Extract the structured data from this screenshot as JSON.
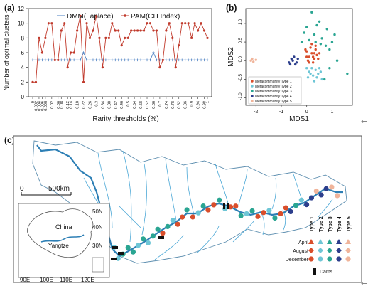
{
  "panels": {
    "a": "(a)",
    "b": "(b)",
    "c": "(c)"
  },
  "chart_data": [
    {
      "type": "line",
      "ylabel": "Number of optimal clusters",
      "xlabel": "Rarity thresholds (%)",
      "ylim": [
        0,
        12
      ],
      "yticks": [
        "0",
        "2",
        "4",
        "6",
        "8",
        "10",
        "12"
      ],
      "x": [
        "0",
        "0.002",
        "0.004",
        "0.006",
        "0.008",
        "0.01",
        "0.02",
        "0.04",
        "0.06",
        "0.08",
        "0.1",
        "0.12",
        "0.14",
        "0.16",
        "0.18",
        "0.2",
        "0.22",
        "0.24",
        "0.26",
        "0.28",
        "0.3",
        "0.32",
        "0.34",
        "0.36",
        "0.38",
        "0.4",
        "0.42",
        "0.44",
        "0.46",
        "0.48",
        "0.5",
        "0.52",
        "0.54",
        "0.56",
        "0.58",
        "0.6",
        "0.62",
        "0.64",
        "0.66",
        "0.68",
        "0.7",
        "0.72",
        "0.74",
        "0.76",
        "0.78",
        "0.8",
        "0.82",
        "0.84",
        "0.86",
        "0.88",
        "0.9",
        "0.92",
        "0.94",
        "0.96",
        "0.98",
        "1"
      ],
      "xticklabels": [
        "0",
        "0.002",
        "0.004",
        "0.006",
        "0.008",
        "0.02",
        "0.06",
        "0.08",
        "0.12",
        "0.14",
        "0.18",
        "0.22",
        "0.26",
        "0.3",
        "0.34",
        "0.38",
        "0.42",
        "0.46",
        "0.5",
        "0.54",
        "0.58",
        "0.62",
        "0.66",
        "0.7",
        "0.74",
        "0.78",
        "0.82",
        "0.86",
        "0.9",
        "0.94",
        "0.98",
        "1"
      ],
      "legend_position": "top",
      "series": [
        {
          "name": "DMM(Laplace)",
          "color": "#4a7fc1",
          "marker": "+",
          "values": [
            5,
            5,
            5,
            5,
            5,
            5,
            5,
            5,
            5,
            5,
            5,
            5,
            5,
            5,
            5,
            5,
            6,
            5,
            5,
            5,
            5,
            5,
            5,
            5,
            5,
            5,
            5,
            5,
            5,
            5,
            5,
            5,
            5,
            5,
            5,
            5,
            5,
            5,
            6,
            5,
            5,
            5,
            5,
            5,
            5,
            5,
            5,
            5,
            5,
            5,
            5,
            5,
            5,
            5,
            5,
            5
          ]
        },
        {
          "name": "PAM(CH Index)",
          "color": "#c0392b",
          "marker": "*",
          "values": [
            2,
            2,
            8,
            6,
            8,
            10,
            10,
            5,
            5,
            9,
            10,
            4,
            6,
            6,
            9,
            11,
            2,
            10,
            8,
            9,
            11,
            8,
            4,
            8,
            8,
            10,
            9,
            9,
            7,
            8,
            8,
            9,
            9,
            9,
            9,
            9,
            10,
            10,
            9,
            9,
            4,
            5,
            9,
            10,
            8,
            4,
            7,
            10,
            10,
            10,
            8,
            10,
            9,
            10,
            9,
            8
          ]
        }
      ]
    },
    {
      "type": "scatter",
      "xlabel": "MDS1",
      "ylabel": "MDS2",
      "xticks": [
        "-2",
        "-1",
        "0",
        "1"
      ],
      "yticks": [
        "-1.0",
        "-0.5",
        "0.0",
        "0.5",
        "1.0"
      ],
      "xlim": [
        -2.4,
        1.8
      ],
      "ylim": [
        -1.2,
        1.4
      ],
      "legend_position": "bottom-left",
      "series": [
        {
          "name": "Metacommunity Type 1",
          "color": "#d94e2b",
          "points": [
            [
              0.1,
              0.1
            ],
            [
              0.2,
              0.2
            ],
            [
              0.3,
              0.05
            ],
            [
              0.4,
              0.15
            ],
            [
              0.0,
              0.25
            ],
            [
              0.15,
              0.35
            ],
            [
              0.25,
              -0.05
            ],
            [
              0.35,
              0.3
            ],
            [
              0.05,
              0.0
            ],
            [
              0.45,
              0.05
            ],
            [
              0.2,
              0.45
            ],
            [
              0.1,
              -0.05
            ],
            [
              0.3,
              0.2
            ],
            [
              0.5,
              0.2
            ],
            [
              0.0,
              0.1
            ],
            [
              -0.05,
              0.3
            ],
            [
              0.25,
              0.1
            ],
            [
              0.35,
              0.4
            ]
          ]
        },
        {
          "name": "Metacommunity Type 2",
          "color": "#6ec6d6",
          "points": [
            [
              0.1,
              -0.3
            ],
            [
              0.25,
              -0.4
            ],
            [
              0.35,
              -0.25
            ],
            [
              0.45,
              -0.35
            ],
            [
              0.2,
              -0.2
            ],
            [
              0.05,
              -0.45
            ],
            [
              0.3,
              -0.55
            ],
            [
              0.5,
              -0.2
            ],
            [
              0.15,
              -0.35
            ],
            [
              0.4,
              -0.45
            ],
            [
              0.55,
              -0.3
            ],
            [
              0.0,
              -0.2
            ],
            [
              0.6,
              -0.5
            ]
          ]
        },
        {
          "name": "Metacommunity Type 3",
          "color": "#2aa592",
          "points": [
            [
              0.2,
              1.3
            ],
            [
              0.5,
              1.05
            ],
            [
              0.0,
              0.9
            ],
            [
              0.8,
              0.85
            ],
            [
              0.3,
              0.7
            ],
            [
              0.6,
              0.6
            ],
            [
              1.0,
              0.5
            ],
            [
              0.9,
              0.3
            ],
            [
              1.2,
              0.0
            ],
            [
              1.6,
              -0.35
            ],
            [
              0.7,
              -0.5
            ],
            [
              0.1,
              0.55
            ],
            [
              -0.1,
              0.75
            ],
            [
              0.4,
              0.95
            ],
            [
              0.75,
              0.4
            ],
            [
              1.1,
              0.7
            ],
            [
              0.35,
              0.5
            ],
            [
              -0.2,
              0.5
            ],
            [
              0.9,
              -0.2
            ],
            [
              0.55,
              0.45
            ]
          ]
        },
        {
          "name": "Metacommunity Type 4",
          "color": "#2c3e8c",
          "points": [
            [
              -0.7,
              -0.05
            ],
            [
              -0.55,
              0.0
            ],
            [
              -0.45,
              -0.1
            ],
            [
              -0.6,
              0.05
            ],
            [
              -0.35,
              0.05
            ],
            [
              -0.4,
              -0.05
            ],
            [
              -0.5,
              0.1
            ],
            [
              -0.65,
              -0.1
            ]
          ]
        },
        {
          "name": "Metacommunity Type 5",
          "color": "#f0b49a",
          "points": [
            [
              -2.2,
              0.0
            ],
            [
              -2.0,
              0.02
            ],
            [
              -2.1,
              -0.03
            ],
            [
              -2.15,
              0.05
            ]
          ]
        }
      ]
    }
  ],
  "map": {
    "scale_start": "0",
    "scale_end": "500km",
    "inset": {
      "lat_labels": [
        "50N",
        "40N",
        "30N"
      ],
      "lon_labels": [
        "90E",
        "100E",
        "110E",
        "120E"
      ],
      "country": "China",
      "river": "Yangtze"
    },
    "legend": {
      "types": [
        "Type 1",
        "Type 2",
        "Type 3",
        "Type 4",
        "Type 5"
      ],
      "type_colors": [
        "#d94e2b",
        "#6ec6d6",
        "#2aa592",
        "#2c3e8c",
        "#f0b49a"
      ],
      "seasons": [
        "April",
        "August",
        "December"
      ],
      "season_shapes": [
        "triangle",
        "diamond",
        "circle"
      ],
      "dams": "Dams"
    }
  }
}
